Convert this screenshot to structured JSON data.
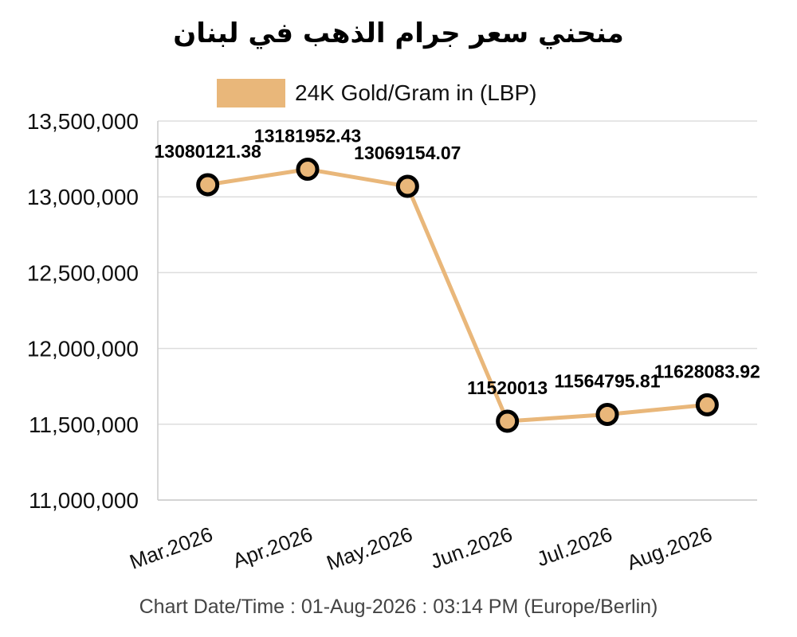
{
  "chart_data": {
    "type": "line",
    "title": "منحني سعر جرام الذهب في لبنان",
    "categories": [
      "Mar.2026",
      "Apr.2026",
      "May.2026",
      "Jun.2026",
      "Jul.2026",
      "Aug.2026"
    ],
    "series": [
      {
        "name": "24K Gold/Gram in (LBP)",
        "color": "#e9b77a",
        "values": [
          13080121.38,
          13181952.43,
          13069154.07,
          11520013,
          11564795.81,
          11628083.92
        ],
        "labels": [
          "13080121.38",
          "13181952.43",
          "13069154.07",
          "11520013",
          "11564795.81",
          "11628083.92"
        ]
      }
    ],
    "ylim": [
      11000000,
      13500000
    ],
    "yticks": [
      "11,000,000",
      "11,500,000",
      "12,000,000",
      "12,500,000",
      "13,000,000",
      "13,500,000"
    ],
    "grid": true,
    "legend_position": "top",
    "xlabel": "",
    "ylabel": ""
  },
  "footer": "Chart Date/Time : 01-Aug-2026 : 03:14 PM (Europe/Berlin)"
}
